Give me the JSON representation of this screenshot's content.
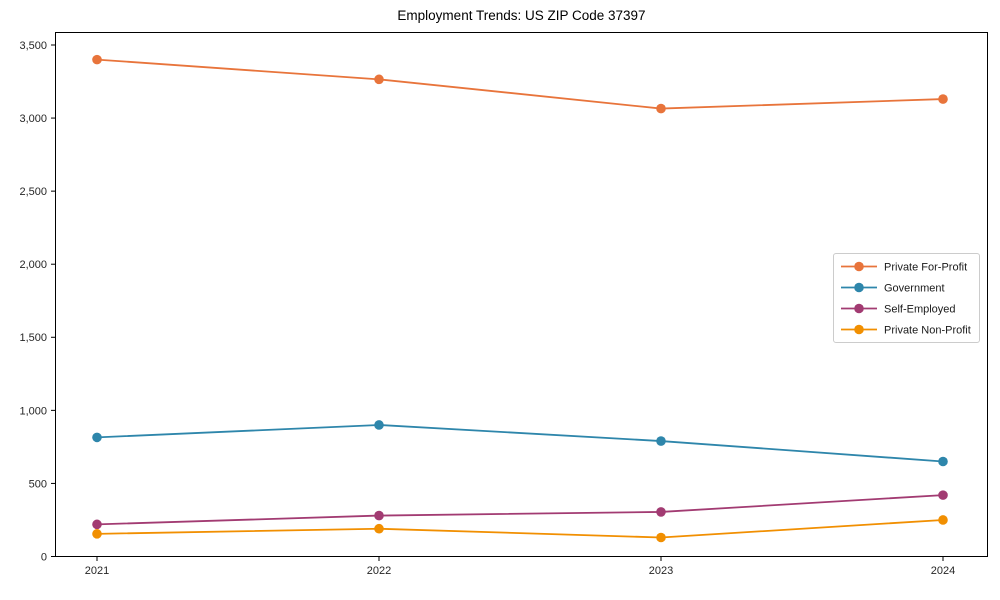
{
  "chart_data": {
    "type": "line",
    "title": "Employment Trends: US ZIP Code 37397",
    "xlabel": "",
    "ylabel": "",
    "categories": [
      "2021",
      "2022",
      "2023",
      "2024"
    ],
    "series": [
      {
        "name": "Private For-Profit",
        "color": "#E8743B",
        "values": [
          3400,
          3265,
          3065,
          3130
        ]
      },
      {
        "name": "Government",
        "color": "#2E86AB",
        "values": [
          815,
          900,
          790,
          650
        ]
      },
      {
        "name": "Self-Employed",
        "color": "#A23B72",
        "values": [
          220,
          280,
          305,
          420
        ]
      },
      {
        "name": "Private Non-Profit",
        "color": "#F18F01",
        "values": [
          155,
          190,
          130,
          250
        ]
      }
    ],
    "ylim": [
      0,
      3500
    ],
    "yticks": [
      0,
      500,
      1000,
      1500,
      2000,
      2500,
      3000,
      3500
    ],
    "ytick_labels": [
      "0",
      "500",
      "1,000",
      "1,500",
      "2,000",
      "2,500",
      "3,000",
      "3,500"
    ],
    "grid": false,
    "legend_position": "center-right",
    "marker": "circle",
    "spine_color": "#000000",
    "tick_label_color": "#262626",
    "legend_border_color": "#cccccc",
    "background_color": "#ffffff"
  }
}
